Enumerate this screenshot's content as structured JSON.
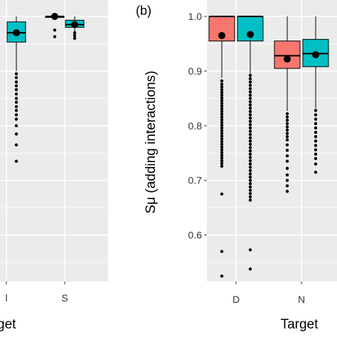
{
  "chart_data": [
    {
      "type": "box",
      "panel_label": "",
      "xlabel": "get",
      "ylabel": "",
      "categories": [
        "l",
        "S"
      ],
      "series_colors": {
        "left": "#F8766D",
        "right": "#00BFC4"
      },
      "ylim": [
        0.515,
        1.03
      ],
      "grid": true,
      "groups": [
        {
          "category": "l",
          "boxes": [
            {
              "side": "right",
              "q1": 0.953,
              "median": 0.97,
              "q3": 0.99,
              "whisker_low": 0.9,
              "whisker_high": 1.0,
              "mean": 0.97,
              "outliers": [
                0.895,
                0.888,
                0.88,
                0.873,
                0.866,
                0.858,
                0.85,
                0.843,
                0.835,
                0.828,
                0.82,
                0.812,
                0.8,
                0.785,
                0.765,
                0.735
              ]
            }
          ]
        },
        {
          "category": "S",
          "boxes": [
            {
              "side": "left",
              "q1": 0.998,
              "median": 1.0,
              "q3": 1.0,
              "whisker_low": 0.998,
              "whisker_high": 1.0,
              "mean": 1.0,
              "outliers": [
                0.975,
                0.963
              ]
            },
            {
              "side": "right",
              "q1": 0.98,
              "median": 0.985,
              "q3": 0.993,
              "whisker_low": 0.972,
              "whisker_high": 1.0,
              "mean": 0.985,
              "outliers": [
                0.97,
                0.965,
                0.96
              ]
            }
          ]
        }
      ]
    },
    {
      "type": "box",
      "panel_label": "(b)",
      "xlabel": "Target",
      "ylabel": "Sμ (adding interactions)",
      "categories": [
        "D",
        "N"
      ],
      "series_colors": {
        "left": "#F8766D",
        "right": "#00BFC4"
      },
      "yticks": [
        "0.6",
        "0.7",
        "0.8",
        "0.9",
        "1.0"
      ],
      "ylim": [
        0.515,
        1.03
      ],
      "grid": true,
      "groups": [
        {
          "category": "D",
          "boxes": [
            {
              "side": "left",
              "q1": 0.955,
              "median": 1.0,
              "q3": 1.0,
              "whisker_low": 0.888,
              "whisker_high": 1.0,
              "mean": 0.965,
              "outliers": [
                0.882,
                0.876,
                0.871,
                0.866,
                0.861,
                0.856,
                0.851,
                0.846,
                0.841,
                0.836,
                0.831,
                0.826,
                0.821,
                0.816,
                0.811,
                0.806,
                0.801,
                0.796,
                0.791,
                0.786,
                0.781,
                0.776,
                0.771,
                0.766,
                0.761,
                0.756,
                0.751,
                0.746,
                0.741,
                0.736,
                0.731,
                0.726,
                0.675,
                0.57,
                0.525
              ]
            },
            {
              "side": "right",
              "q1": 0.955,
              "median": 1.0,
              "q3": 1.0,
              "whisker_low": 0.895,
              "whisker_high": 1.0,
              "mean": 0.967,
              "outliers": [
                0.892,
                0.886,
                0.88,
                0.874,
                0.868,
                0.862,
                0.856,
                0.85,
                0.844,
                0.838,
                0.832,
                0.826,
                0.82,
                0.814,
                0.808,
                0.802,
                0.796,
                0.79,
                0.784,
                0.778,
                0.772,
                0.766,
                0.76,
                0.754,
                0.748,
                0.742,
                0.736,
                0.73,
                0.724,
                0.718,
                0.712,
                0.706,
                0.7,
                0.694,
                0.688,
                0.682,
                0.676,
                0.67,
                0.664,
                0.573,
                0.538
              ]
            }
          ]
        },
        {
          "category": "N",
          "boxes": [
            {
              "side": "left",
              "q1": 0.905,
              "median": 0.928,
              "q3": 0.955,
              "whisker_low": 0.827,
              "whisker_high": 1.0,
              "mean": 0.922,
              "outliers": [
                0.822,
                0.816,
                0.81,
                0.804,
                0.798,
                0.792,
                0.786,
                0.78,
                0.774,
                0.765,
                0.755,
                0.745,
                0.735,
                0.722,
                0.71,
                0.7,
                0.69,
                0.68
              ]
            },
            {
              "side": "right",
              "q1": 0.908,
              "median": 0.932,
              "q3": 0.958,
              "whisker_low": 0.832,
              "whisker_high": 1.0,
              "mean": 0.93,
              "outliers": [
                0.828,
                0.82,
                0.812,
                0.804,
                0.796,
                0.788,
                0.78,
                0.772,
                0.764,
                0.756,
                0.748,
                0.74,
                0.73,
                0.715
              ]
            }
          ]
        }
      ]
    }
  ]
}
